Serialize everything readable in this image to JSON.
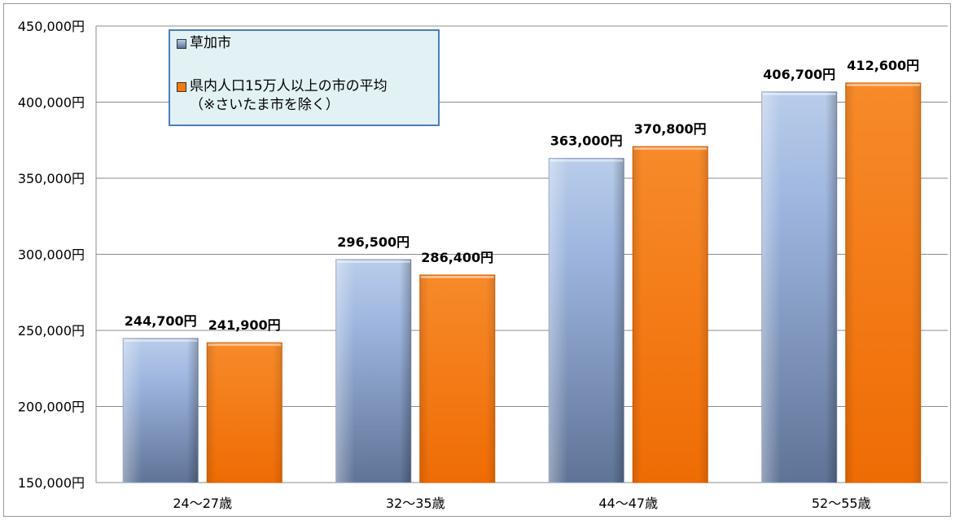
{
  "chart_data": {
    "type": "bar",
    "categories": [
      "24～27歳",
      "32～35歳",
      "44～47歳",
      "52～55歳"
    ],
    "series": [
      {
        "name": "草加市",
        "values": [
          244700,
          296500,
          363000,
          406700
        ],
        "labels": [
          "244,700円",
          "296,500円",
          "363,000円",
          "406,700円"
        ]
      },
      {
        "name": "県内人口15万人以上の市の平均\n（※さいたま市を除く）",
        "values": [
          241900,
          286400,
          370800,
          412600
        ],
        "labels": [
          "241,900円",
          "286,400円",
          "370,800円",
          "412,600円"
        ]
      }
    ],
    "ylim": [
      150000,
      450000
    ],
    "yticks": [
      150000,
      200000,
      250000,
      300000,
      350000,
      400000,
      450000
    ],
    "ytick_labels": [
      "150,000円",
      "200,000円",
      "250,000円",
      "300,000円",
      "350,000円",
      "400,000円",
      "450,000円"
    ],
    "grid": true,
    "legend_position": "top-left",
    "colors": {
      "series1_light": "#b9cdea",
      "series1_dark": "#5f7396",
      "series2_light": "#f57a10",
      "series2_dark": "#e56a05",
      "grid": "#8c8c8c",
      "legend_bg": "#e2f1f4",
      "legend_border": "#4a7ebb"
    }
  }
}
